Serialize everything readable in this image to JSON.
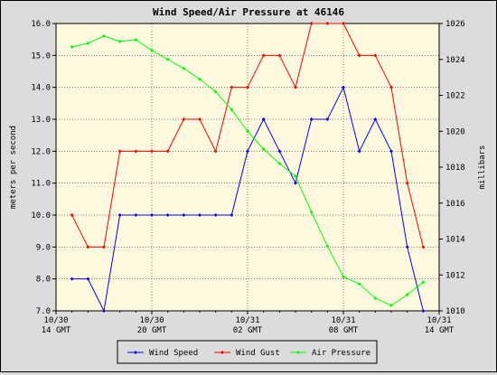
{
  "chart_data": {
    "type": "line",
    "title": "Wind Speed/Air Pressure at 46146",
    "ylabel": "meters per second",
    "y2label": "millibars",
    "ylim": [
      7.0,
      16.0
    ],
    "y2lim": [
      1010,
      1026
    ],
    "y_ticks": [
      "7.0",
      "8.0",
      "9.0",
      "10.0",
      "11.0",
      "12.0",
      "13.0",
      "14.0",
      "15.0",
      "16.0"
    ],
    "y2_ticks": [
      "1010",
      "1012",
      "1014",
      "1016",
      "1018",
      "1020",
      "1022",
      "1024",
      "1026"
    ],
    "x_ticks": [
      {
        "line1": "10/30",
        "line2": "14 GMT"
      },
      {
        "line1": "10/30",
        "line2": "20 GMT"
      },
      {
        "line1": "10/31",
        "line2": "02 GMT"
      },
      {
        "line1": "10/31",
        "line2": "08 GMT"
      },
      {
        "line1": "10/31",
        "line2": "14 GMT"
      }
    ],
    "xlim_hours": [
      0,
      24
    ],
    "grid": true,
    "legend_position": "bottom",
    "background_color": "#fffadf",
    "series": [
      {
        "name": "Wind Speed",
        "axis": "left",
        "color": "#0000ff",
        "x": [
          1,
          2,
          3,
          4,
          5,
          6,
          7,
          8,
          9,
          10,
          11,
          12,
          13,
          14,
          15,
          16,
          17,
          18,
          19,
          20,
          21,
          22,
          23
        ],
        "values": [
          8.0,
          8.0,
          7.0,
          10.0,
          10.0,
          10.0,
          10.0,
          10.0,
          10.0,
          10.0,
          10.0,
          12.0,
          13.0,
          12.0,
          11.0,
          13.0,
          13.0,
          14.0,
          12.0,
          13.0,
          12.0,
          9.0,
          7.0
        ]
      },
      {
        "name": "Wind Gust",
        "axis": "left",
        "color": "#ff0000",
        "x": [
          1,
          2,
          3,
          4,
          5,
          6,
          7,
          8,
          9,
          10,
          11,
          12,
          13,
          14,
          15,
          16,
          17,
          18,
          19,
          20,
          21,
          22,
          23
        ],
        "values": [
          10.0,
          9.0,
          9.0,
          12.0,
          12.0,
          12.0,
          12.0,
          13.0,
          13.0,
          12.0,
          14.0,
          14.0,
          15.0,
          15.0,
          14.0,
          16.0,
          16.0,
          16.0,
          15.0,
          15.0,
          14.0,
          11.0,
          9.0
        ]
      },
      {
        "name": "Air Pressure",
        "axis": "right",
        "color": "#00ff00",
        "x": [
          1,
          2,
          3,
          4,
          5,
          6,
          7,
          8,
          9,
          10,
          11,
          12,
          13,
          14,
          15,
          16,
          17,
          18,
          19,
          20,
          21,
          22,
          23
        ],
        "values": [
          1024.7,
          1024.9,
          1025.3,
          1025.0,
          1025.1,
          1024.5,
          1024.0,
          1023.5,
          1022.9,
          1022.2,
          1021.2,
          1020.0,
          1019.0,
          1018.2,
          1017.5,
          1015.5,
          1013.6,
          1011.9,
          1011.5,
          1010.7,
          1010.3,
          1010.9,
          1011.6
        ]
      }
    ]
  }
}
